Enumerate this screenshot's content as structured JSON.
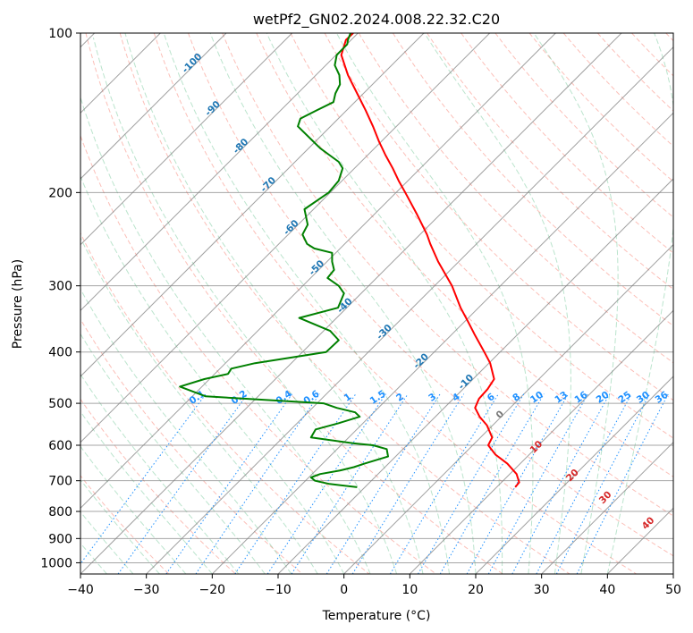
{
  "chart_data": {
    "type": "line",
    "title": "wetPf2_GN02.2024.008.22.32.C20",
    "xlabel": "Temperature (°C)",
    "ylabel": "Pressure (hPa)",
    "xlim": [
      -40,
      50
    ],
    "ylim": [
      1050,
      100
    ],
    "y_scale": "log",
    "x_ticks": [
      -40,
      -30,
      -20,
      -10,
      0,
      10,
      20,
      30,
      40,
      50
    ],
    "y_ticks": [
      100,
      200,
      300,
      400,
      500,
      600,
      700,
      800,
      900,
      1000
    ],
    "grid": true,
    "series": [
      {
        "color": "#ff0000",
        "x": [
          26.0,
          26.6,
          26.2,
          24.8,
          23.0,
          21.9,
          22.5,
          21.7,
          20.6,
          19.9,
          20.5,
          21.8,
          22.8,
          22.2,
          21.3,
          19.8,
          18.8,
          17.7,
          16.4,
          14.3,
          13.1,
          12.6,
          11.1,
          9.3,
          8.3,
          7.4,
          6.3,
          5.3,
          4.4,
          3.3,
          2.0,
          0.6,
          -0.4,
          0.3,
          1.4
        ],
        "y": [
          720,
          705,
          680,
          650,
          625,
          600,
          580,
          550,
          530,
          510,
          490,
          470,
          450,
          420,
          400,
          370,
          350,
          330,
          300,
          270,
          250,
          240,
          220,
          200,
          190,
          180,
          170,
          160,
          150,
          140,
          130,
          120,
          110,
          103,
          100
        ]
      },
      {
        "color": "#008000",
        "x": [
          2.0,
          -2.2,
          -4.4,
          -5.0,
          -3.6,
          -0.7,
          1.5,
          3.1,
          6.7,
          6.5,
          4.4,
          1.5,
          -5.0,
          -4.3,
          -0.8,
          2.4,
          1.7,
          -1.1,
          -3.1,
          -21.0,
          -24.9,
          -21.2,
          -17.6,
          -17.1,
          -13.5,
          -2.7,
          -0.8,
          -2.1,
          -6.8,
          -0.9,
          0.0,
          -0.8,
          -2.5,
          -1.5,
          -1.8,
          -1.8,
          -4.5,
          -5.6,
          -6.3,
          -5.5,
          -6.0,
          -2.3,
          -0.8,
          -0.2,
          -0.8,
          -2.2,
          -3.6,
          -4.7,
          -7.0,
          -6.6,
          -4.2,
          -1.6,
          -1.3,
          -0.6,
          -0.7,
          -1.4,
          -1.1,
          0.5,
          0.6,
          1.0
        ],
        "y": [
          720,
          710,
          700,
          690,
          680,
          670,
          660,
          650,
          630,
          610,
          600,
          595,
          580,
          560,
          545,
          530,
          520,
          510,
          500,
          485,
          465,
          450,
          440,
          430,
          420,
          400,
          380,
          365,
          345,
          330,
          310,
          300,
          290,
          280,
          270,
          260,
          255,
          250,
          240,
          230,
          215,
          200,
          190,
          180,
          175,
          170,
          165,
          160,
          150,
          145,
          140,
          135,
          130,
          125,
          120,
          115,
          110,
          105,
          103,
          100
        ]
      }
    ],
    "isotherm_labels": [
      "-100",
      "-90",
      "-80",
      "-70",
      "-60",
      "-50",
      "-40",
      "-30",
      "-20",
      "-10"
    ],
    "mixing_ratio_labels": [
      "0.1",
      "0.2",
      "0.4",
      "0.6",
      "1",
      "1.5",
      "2",
      "3",
      "4",
      "6",
      "8",
      "10",
      "13",
      "16",
      "20",
      "25",
      "30",
      "36"
    ],
    "theta_e_labels": [
      "0",
      "10",
      "20",
      "30",
      "40"
    ],
    "colors": {
      "temperature": "#ff0000",
      "dewpoint": "#008000",
      "isotherm_label": "#1f77b4",
      "mixing_ratio": "#1e90ff",
      "theta_e_label": "#d62728",
      "dry_adiabat": "#fa8072",
      "moist_adiabat": "#3cb371",
      "grid": "#808080"
    }
  }
}
